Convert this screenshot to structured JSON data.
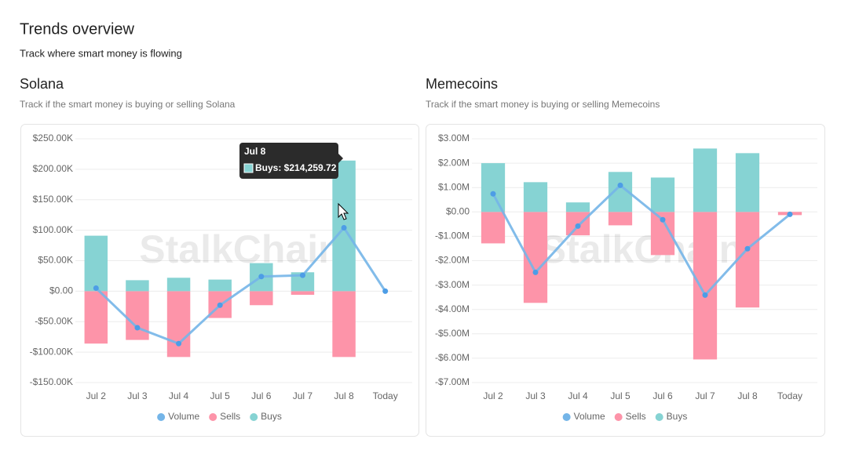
{
  "header": {
    "title": "Trends overview",
    "subtitle": "Track where smart money is flowing"
  },
  "chart_data": [
    {
      "type": "bar",
      "title": "Solana",
      "subtitle": "Track if the smart money is buying or selling Solana",
      "watermark": "StalkChain",
      "categories": [
        "Jul 2",
        "Jul 3",
        "Jul 4",
        "Jul 5",
        "Jul 6",
        "Jul 7",
        "Jul 8",
        "Today"
      ],
      "series": [
        {
          "name": "Volume",
          "type": "line",
          "color": "#74b5e8",
          "values": [
            5000,
            -60000,
            -86000,
            -23000,
            24000,
            26000,
            104000,
            0
          ]
        },
        {
          "name": "Sells",
          "color": "#fd94a9",
          "values": [
            -86000,
            -80000,
            -108000,
            -44000,
            -23000,
            -6000,
            -108000,
            0
          ]
        },
        {
          "name": "Buys",
          "color": "#86d3d3",
          "values": [
            91000,
            18000,
            22000,
            19000,
            46000,
            31000,
            214259.72,
            0
          ]
        }
      ],
      "ylim": [
        -150000,
        250000
      ],
      "yticks": [
        {
          "value": -150000,
          "label": "-$150.00K"
        },
        {
          "value": -100000,
          "label": "-$100.00K"
        },
        {
          "value": -50000,
          "label": "-$50.00K"
        },
        {
          "value": 0,
          "label": "$0.00"
        },
        {
          "value": 50000,
          "label": "$50.00K"
        },
        {
          "value": 100000,
          "label": "$100.00K"
        },
        {
          "value": 150000,
          "label": "$150.00K"
        },
        {
          "value": 200000,
          "label": "$200.00K"
        },
        {
          "value": 250000,
          "label": "$250.00K"
        }
      ],
      "grid": true,
      "legend": "bottom",
      "tooltip": {
        "title": "Jul 8",
        "text": "Buys: $214,259.72"
      }
    },
    {
      "type": "bar",
      "title": "Memecoins",
      "subtitle": "Track if the smart money is buying or selling Memecoins",
      "watermark": "StalkChain",
      "categories": [
        "Jul 2",
        "Jul 3",
        "Jul 4",
        "Jul 5",
        "Jul 6",
        "Jul 7",
        "Jul 8",
        "Today"
      ],
      "series": [
        {
          "name": "Volume",
          "type": "line",
          "color": "#74b5e8",
          "values": [
            740000,
            -2480000,
            -580000,
            1090000,
            -320000,
            -3410000,
            -1510000,
            -100000
          ]
        },
        {
          "name": "Sells",
          "color": "#fd94a9",
          "values": [
            -1290000,
            -3730000,
            -960000,
            -550000,
            -1770000,
            -6050000,
            -3920000,
            -130000
          ]
        },
        {
          "name": "Buys",
          "color": "#86d3d3",
          "values": [
            2000000,
            1220000,
            390000,
            1640000,
            1410000,
            2600000,
            2410000,
            0
          ]
        }
      ],
      "ylim": [
        -7000000,
        3000000
      ],
      "yticks": [
        {
          "value": -7000000,
          "label": "-$7.00M"
        },
        {
          "value": -6000000,
          "label": "-$6.00M"
        },
        {
          "value": -5000000,
          "label": "-$5.00M"
        },
        {
          "value": -4000000,
          "label": "-$4.00M"
        },
        {
          "value": -3000000,
          "label": "-$3.00M"
        },
        {
          "value": -2000000,
          "label": "-$2.00M"
        },
        {
          "value": -1000000,
          "label": "-$1.00M"
        },
        {
          "value": 0,
          "label": "$0.00"
        },
        {
          "value": 1000000,
          "label": "$1.00M"
        },
        {
          "value": 2000000,
          "label": "$2.00M"
        },
        {
          "value": 3000000,
          "label": "$3.00M"
        }
      ],
      "grid": true,
      "legend": "bottom"
    }
  ]
}
